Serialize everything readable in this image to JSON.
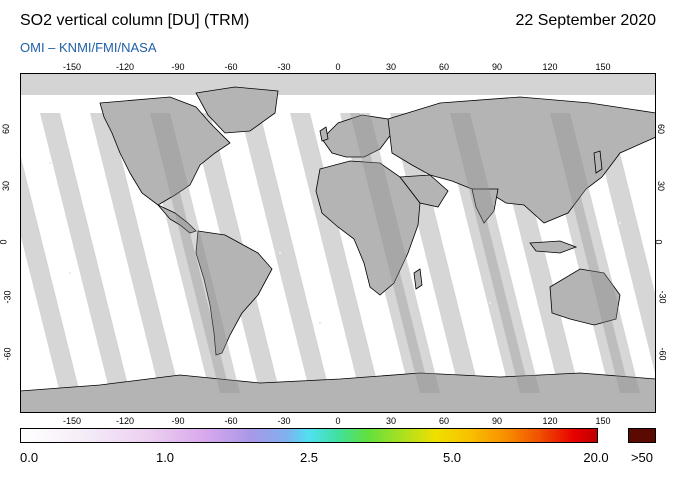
{
  "header": {
    "title": "SO2 vertical column [DU] (TRM)",
    "date": "22 September 2020",
    "source": "OMI  –  KNMI/FMI/NASA"
  },
  "map": {
    "lon_ticks": [
      "-150",
      "-120",
      "-90",
      "-60",
      "-30",
      "0",
      "30",
      "60",
      "90",
      "120",
      "150"
    ],
    "lat_ticks": [
      "60",
      "30",
      "0",
      "-30",
      "-60"
    ],
    "colors": {
      "ocean": "#ffffff",
      "orbit_gap": "#d4d4d4",
      "orbit_dark": "#a8a8a8",
      "coast": "#000000"
    }
  },
  "colorbar": {
    "labels": [
      "0.0",
      "1.0",
      "2.5",
      "5.0",
      "20.0"
    ],
    "overflow_label": ">50",
    "overflow_color": "#5a0a00"
  }
}
